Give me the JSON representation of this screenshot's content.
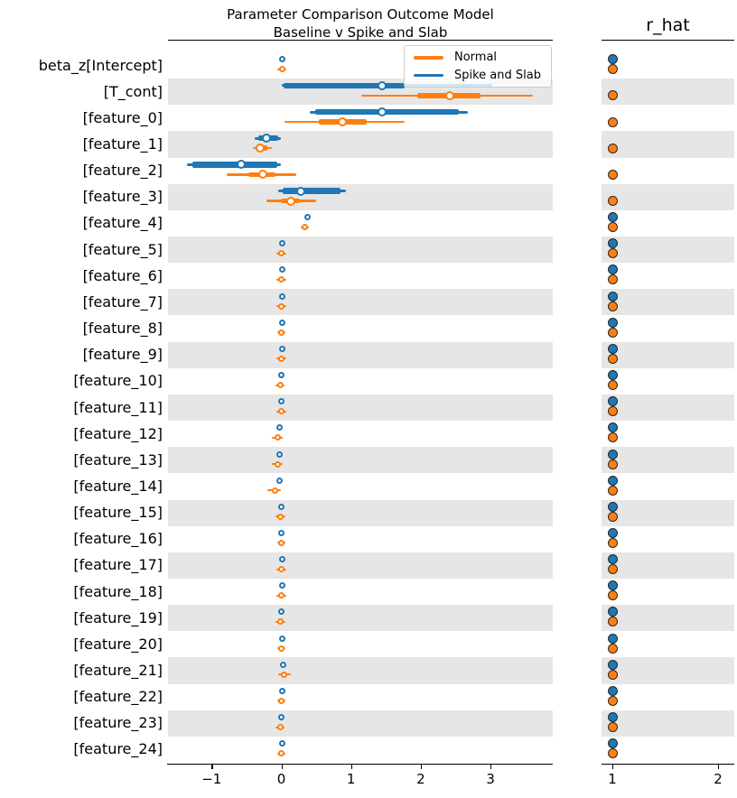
{
  "figure": {
    "title_line1": "Parameter Comparison Outcome Model",
    "title_line2": "Baseline v Spike and Slab",
    "rhat_title": "r_hat"
  },
  "legend": {
    "items": [
      {
        "label": "Normal",
        "color": "#ff7f0e"
      },
      {
        "label": "Spike and Slab",
        "color": "#1f77b4"
      }
    ]
  },
  "chart_data": {
    "type": "forest",
    "title": "Parameter Comparison Outcome Model",
    "subtitle": "Baseline v Spike and Slab",
    "rhat_panel_title": "r_hat",
    "legend_position": "upper right inside main panel",
    "series_colors": {
      "normal": "#ff7f0e",
      "spike": "#1f77b4"
    },
    "band_color": "#e6e6e6",
    "x_axis": {
      "range": [
        -1.63,
        3.9
      ],
      "ticks": [
        {
          "v": -1,
          "label": "−1"
        },
        {
          "v": 0,
          "label": "0"
        },
        {
          "v": 1,
          "label": "1"
        },
        {
          "v": 2,
          "label": "2"
        },
        {
          "v": 3,
          "label": "3"
        }
      ]
    },
    "rhat_axis": {
      "range": [
        0.92,
        2.16
      ],
      "ticks": [
        {
          "v": 1,
          "label": "1"
        },
        {
          "v": 2,
          "label": "2"
        }
      ]
    },
    "rows": [
      {
        "label": "beta_z[Intercept]",
        "spike": {
          "lo": 0.01,
          "tlo": 0.01,
          "thi": 0.01,
          "hi": 0.01,
          "med": 0.01
        },
        "normal": {
          "lo": -0.06,
          "tlo": -0.02,
          "thi": 0.03,
          "hi": 0.07,
          "med": 0.01
        },
        "rhat": {
          "spike": 1.0,
          "normal": 1.0
        }
      },
      {
        "label": "[T_cont]",
        "spike": {
          "lo": 0.0,
          "tlo": 0.03,
          "thi": 1.77,
          "hi": 3.03,
          "med": 1.44
        },
        "normal": {
          "lo": 1.15,
          "tlo": 1.95,
          "thi": 2.86,
          "hi": 3.61,
          "med": 2.42
        },
        "rhat": {
          "spike": null,
          "normal": 1.0
        }
      },
      {
        "label": "[feature_0]",
        "spike": {
          "lo": 0.41,
          "tlo": 0.48,
          "thi": 2.55,
          "hi": 2.67,
          "med": 1.45
        },
        "normal": {
          "lo": 0.05,
          "tlo": 0.54,
          "thi": 1.22,
          "hi": 1.77,
          "med": 0.87
        },
        "rhat": {
          "spike": null,
          "normal": 1.0
        }
      },
      {
        "label": "[feature_1]",
        "spike": {
          "lo": -0.38,
          "tlo": -0.33,
          "thi": -0.05,
          "hi": -0.01,
          "med": -0.21
        },
        "normal": {
          "lo": -0.41,
          "tlo": -0.36,
          "thi": -0.2,
          "hi": -0.14,
          "med": -0.3
        },
        "rhat": {
          "spike": null,
          "normal": 1.0
        }
      },
      {
        "label": "[feature_2]",
        "spike": {
          "lo": -1.35,
          "tlo": -1.28,
          "thi": -0.06,
          "hi": -0.01,
          "med": -0.57
        },
        "normal": {
          "lo": -0.79,
          "tlo": -0.47,
          "thi": -0.08,
          "hi": 0.22,
          "med": -0.26
        },
        "rhat": {
          "spike": null,
          "normal": 1.0
        }
      },
      {
        "label": "[feature_3]",
        "spike": {
          "lo": -0.04,
          "tlo": 0.02,
          "thi": 0.85,
          "hi": 0.92,
          "med": 0.28
        },
        "normal": {
          "lo": -0.21,
          "tlo": -0.01,
          "thi": 0.27,
          "hi": 0.5,
          "med": 0.14
        },
        "rhat": {
          "spike": null,
          "normal": 1.0
        }
      },
      {
        "label": "[feature_4]",
        "spike": {
          "lo": 0.38,
          "tlo": 0.38,
          "thi": 0.38,
          "hi": 0.38,
          "med": 0.38
        },
        "normal": {
          "lo": 0.28,
          "tlo": 0.32,
          "thi": 0.36,
          "hi": 0.4,
          "med": 0.34
        },
        "rhat": {
          "spike": 1.0,
          "normal": 1.0
        }
      },
      {
        "label": "[feature_5]",
        "spike": {
          "lo": 0.01,
          "tlo": 0.01,
          "thi": 0.01,
          "hi": 0.01,
          "med": 0.01
        },
        "normal": {
          "lo": -0.07,
          "tlo": -0.02,
          "thi": 0.02,
          "hi": 0.07,
          "med": 0.0
        },
        "rhat": {
          "spike": 1.0,
          "normal": 1.0
        }
      },
      {
        "label": "[feature_6]",
        "spike": {
          "lo": 0.01,
          "tlo": 0.01,
          "thi": 0.01,
          "hi": 0.01,
          "med": 0.01
        },
        "normal": {
          "lo": -0.07,
          "tlo": -0.02,
          "thi": 0.02,
          "hi": 0.07,
          "med": 0.0
        },
        "rhat": {
          "spike": 1.0,
          "normal": 1.0
        }
      },
      {
        "label": "[feature_7]",
        "spike": {
          "lo": 0.01,
          "tlo": 0.01,
          "thi": 0.01,
          "hi": 0.01,
          "med": 0.01
        },
        "normal": {
          "lo": -0.07,
          "tlo": -0.02,
          "thi": 0.02,
          "hi": 0.07,
          "med": 0.0
        },
        "rhat": {
          "spike": 1.0,
          "normal": 1.0
        }
      },
      {
        "label": "[feature_8]",
        "spike": {
          "lo": 0.01,
          "tlo": 0.01,
          "thi": 0.01,
          "hi": 0.01,
          "med": 0.01
        },
        "normal": {
          "lo": -0.06,
          "tlo": -0.02,
          "thi": 0.02,
          "hi": 0.06,
          "med": 0.0
        },
        "rhat": {
          "spike": 1.0,
          "normal": 1.0
        }
      },
      {
        "label": "[feature_9]",
        "spike": {
          "lo": 0.01,
          "tlo": 0.01,
          "thi": 0.01,
          "hi": 0.01,
          "med": 0.01
        },
        "normal": {
          "lo": -0.07,
          "tlo": -0.02,
          "thi": 0.02,
          "hi": 0.07,
          "med": 0.0
        },
        "rhat": {
          "spike": 1.0,
          "normal": 1.0
        }
      },
      {
        "label": "[feature_10]",
        "spike": {
          "lo": 0.0,
          "tlo": 0.0,
          "thi": 0.0,
          "hi": 0.0,
          "med": 0.0
        },
        "normal": {
          "lo": -0.08,
          "tlo": -0.03,
          "thi": 0.02,
          "hi": 0.05,
          "med": -0.01
        },
        "rhat": {
          "spike": 1.0,
          "normal": 1.0
        }
      },
      {
        "label": "[feature_11]",
        "spike": {
          "lo": 0.0,
          "tlo": 0.0,
          "thi": 0.0,
          "hi": 0.0,
          "med": 0.0
        },
        "normal": {
          "lo": -0.07,
          "tlo": -0.02,
          "thi": 0.02,
          "hi": 0.07,
          "med": 0.0
        },
        "rhat": {
          "spike": 1.0,
          "normal": 1.0
        }
      },
      {
        "label": "[feature_12]",
        "spike": {
          "lo": -0.03,
          "tlo": -0.03,
          "thi": -0.03,
          "hi": -0.03,
          "med": -0.03
        },
        "normal": {
          "lo": -0.13,
          "tlo": -0.07,
          "thi": -0.02,
          "hi": 0.02,
          "med": -0.05
        },
        "rhat": {
          "spike": 1.0,
          "normal": 1.0
        }
      },
      {
        "label": "[feature_13]",
        "spike": {
          "lo": -0.03,
          "tlo": -0.03,
          "thi": -0.03,
          "hi": -0.03,
          "med": -0.03
        },
        "normal": {
          "lo": -0.13,
          "tlo": -0.07,
          "thi": -0.02,
          "hi": 0.02,
          "med": -0.05
        },
        "rhat": {
          "spike": 1.0,
          "normal": 1.0
        }
      },
      {
        "label": "[feature_14]",
        "spike": {
          "lo": -0.03,
          "tlo": -0.03,
          "thi": -0.03,
          "hi": -0.03,
          "med": -0.03
        },
        "normal": {
          "lo": -0.2,
          "tlo": -0.13,
          "thi": -0.05,
          "hi": -0.01,
          "med": -0.09
        },
        "rhat": {
          "spike": 1.0,
          "normal": 1.0
        }
      },
      {
        "label": "[feature_15]",
        "spike": {
          "lo": 0.0,
          "tlo": 0.0,
          "thi": 0.0,
          "hi": 0.0,
          "med": 0.0
        },
        "normal": {
          "lo": -0.08,
          "tlo": -0.03,
          "thi": 0.02,
          "hi": 0.06,
          "med": -0.01
        },
        "rhat": {
          "spike": 1.0,
          "normal": 1.0
        }
      },
      {
        "label": "[feature_16]",
        "spike": {
          "lo": 0.0,
          "tlo": 0.0,
          "thi": 0.0,
          "hi": 0.0,
          "med": 0.0
        },
        "normal": {
          "lo": -0.06,
          "tlo": -0.02,
          "thi": 0.02,
          "hi": 0.06,
          "med": 0.0
        },
        "rhat": {
          "spike": 1.0,
          "normal": 1.0
        }
      },
      {
        "label": "[feature_17]",
        "spike": {
          "lo": 0.01,
          "tlo": 0.01,
          "thi": 0.01,
          "hi": 0.01,
          "med": 0.01
        },
        "normal": {
          "lo": -0.07,
          "tlo": -0.02,
          "thi": 0.02,
          "hi": 0.07,
          "med": 0.0
        },
        "rhat": {
          "spike": 1.0,
          "normal": 1.0
        }
      },
      {
        "label": "[feature_18]",
        "spike": {
          "lo": 0.01,
          "tlo": 0.01,
          "thi": 0.01,
          "hi": 0.01,
          "med": 0.01
        },
        "normal": {
          "lo": -0.07,
          "tlo": -0.02,
          "thi": 0.02,
          "hi": 0.07,
          "med": 0.0
        },
        "rhat": {
          "spike": 1.0,
          "normal": 1.0
        }
      },
      {
        "label": "[feature_19]",
        "spike": {
          "lo": 0.0,
          "tlo": 0.0,
          "thi": 0.0,
          "hi": 0.0,
          "med": 0.0
        },
        "normal": {
          "lo": -0.08,
          "tlo": -0.03,
          "thi": 0.02,
          "hi": 0.06,
          "med": -0.01
        },
        "rhat": {
          "spike": 1.0,
          "normal": 1.0
        }
      },
      {
        "label": "[feature_20]",
        "spike": {
          "lo": 0.01,
          "tlo": 0.01,
          "thi": 0.01,
          "hi": 0.01,
          "med": 0.01
        },
        "normal": {
          "lo": -0.06,
          "tlo": -0.02,
          "thi": 0.02,
          "hi": 0.06,
          "med": 0.0
        },
        "rhat": {
          "spike": 1.0,
          "normal": 1.0
        }
      },
      {
        "label": "[feature_21]",
        "spike": {
          "lo": 0.02,
          "tlo": 0.02,
          "thi": 0.02,
          "hi": 0.02,
          "med": 0.02
        },
        "normal": {
          "lo": -0.05,
          "tlo": 0.0,
          "thi": 0.08,
          "hi": 0.13,
          "med": 0.04
        },
        "rhat": {
          "spike": 1.0,
          "normal": 1.0
        }
      },
      {
        "label": "[feature_22]",
        "spike": {
          "lo": 0.01,
          "tlo": 0.01,
          "thi": 0.01,
          "hi": 0.01,
          "med": 0.01
        },
        "normal": {
          "lo": -0.06,
          "tlo": -0.02,
          "thi": 0.02,
          "hi": 0.06,
          "med": 0.0
        },
        "rhat": {
          "spike": 1.0,
          "normal": 1.0
        }
      },
      {
        "label": "[feature_23]",
        "spike": {
          "lo": 0.0,
          "tlo": 0.0,
          "thi": 0.0,
          "hi": 0.0,
          "med": 0.0
        },
        "normal": {
          "lo": -0.08,
          "tlo": -0.03,
          "thi": 0.02,
          "hi": 0.05,
          "med": -0.01
        },
        "rhat": {
          "spike": 1.0,
          "normal": 1.0
        }
      },
      {
        "label": "[feature_24]",
        "spike": {
          "lo": 0.01,
          "tlo": 0.01,
          "thi": 0.01,
          "hi": 0.01,
          "med": 0.01
        },
        "normal": {
          "lo": -0.06,
          "tlo": -0.02,
          "thi": 0.02,
          "hi": 0.06,
          "med": 0.0
        },
        "rhat": {
          "spike": 1.0,
          "normal": 1.0
        }
      }
    ]
  }
}
